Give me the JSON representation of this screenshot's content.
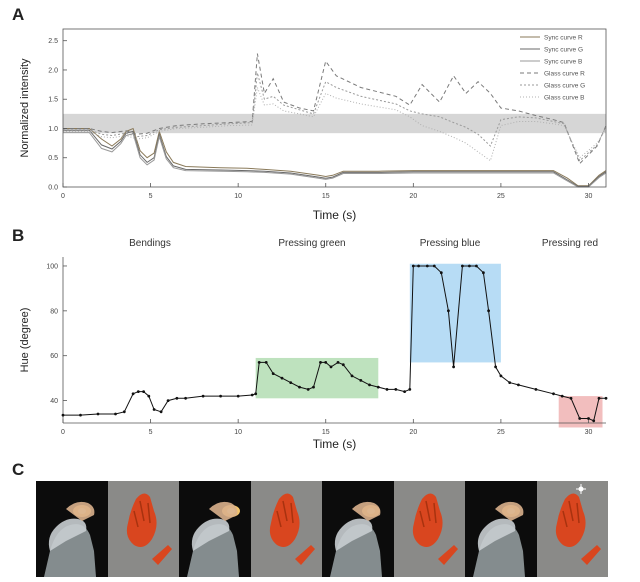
{
  "panels": {
    "a": "A",
    "b": "B",
    "c": "C"
  },
  "chart_data": [
    {
      "type": "line",
      "xlabel": "Time (s)",
      "ylabel": "Normalized intensity",
      "xlim": [
        0,
        31
      ],
      "ylim": [
        0,
        2.7
      ],
      "xticks": [
        0,
        5,
        10,
        15,
        20,
        25,
        30
      ],
      "yticks": [
        0.0,
        0.5,
        1.0,
        1.5,
        2.0,
        2.5
      ],
      "xtick_labels": [
        "0",
        "5",
        "10",
        "15",
        "20",
        "25",
        "30"
      ],
      "ytick_labels": [
        "0.0",
        "0.5",
        "1.0",
        "1.5",
        "2.0",
        "2.5"
      ],
      "shaded_band": [
        0.92,
        1.25
      ],
      "legend": [
        "Sync curve R",
        "Sync curve G",
        "Sync curve B",
        "Glass curve R",
        "Glass curve G",
        "Glass curve B"
      ],
      "legend_position": "top-right",
      "series": [
        {
          "name": "Sync curve R",
          "color": "#8a7a5a",
          "dash": "solid",
          "x": [
            0,
            1.5,
            2.2,
            2.8,
            3.3,
            3.6,
            4.0,
            4.4,
            4.8,
            5.2,
            5.5,
            5.9,
            6.3,
            7,
            9,
            10.5,
            11.5,
            13,
            14.6,
            15.0,
            15.4,
            16,
            18,
            20,
            22,
            24,
            26,
            28,
            28.8,
            29.4,
            30.0,
            30.6,
            31
          ],
          "y": [
            1.0,
            1.0,
            0.82,
            0.7,
            0.82,
            0.95,
            1.0,
            0.62,
            0.5,
            0.58,
            0.95,
            0.6,
            0.42,
            0.35,
            0.33,
            0.32,
            0.3,
            0.27,
            0.2,
            0.18,
            0.2,
            0.27,
            0.27,
            0.28,
            0.28,
            0.28,
            0.28,
            0.28,
            0.15,
            0.02,
            0.02,
            0.2,
            0.28
          ]
        },
        {
          "name": "Sync curve G",
          "color": "#6a6a6a",
          "dash": "solid",
          "x": [
            0,
            1.5,
            2.2,
            2.8,
            3.3,
            3.6,
            4.0,
            4.4,
            4.8,
            5.2,
            5.5,
            5.9,
            6.3,
            7,
            9,
            10.5,
            11.5,
            13,
            14.6,
            15.0,
            15.4,
            16,
            18,
            20,
            22,
            24,
            26,
            28,
            28.8,
            29.4,
            30.0,
            30.6,
            31
          ],
          "y": [
            0.97,
            0.97,
            0.72,
            0.65,
            0.78,
            0.92,
            0.95,
            0.55,
            0.42,
            0.5,
            0.9,
            0.52,
            0.36,
            0.3,
            0.29,
            0.28,
            0.27,
            0.24,
            0.17,
            0.15,
            0.17,
            0.25,
            0.25,
            0.26,
            0.26,
            0.26,
            0.26,
            0.26,
            0.12,
            0.01,
            0.01,
            0.18,
            0.26
          ]
        },
        {
          "name": "Sync curve B",
          "color": "#9a9a9a",
          "dash": "solid",
          "x": [
            0,
            1.5,
            2.2,
            2.8,
            3.3,
            3.6,
            4.0,
            4.4,
            4.8,
            5.2,
            5.5,
            5.9,
            6.3,
            7,
            9,
            10.5,
            11.5,
            13,
            14.6,
            15.0,
            15.4,
            16,
            18,
            20,
            22,
            24,
            26,
            28,
            28.8,
            29.4,
            30.0,
            30.6,
            31
          ],
          "y": [
            0.93,
            0.93,
            0.66,
            0.6,
            0.74,
            0.88,
            0.91,
            0.5,
            0.38,
            0.46,
            0.86,
            0.48,
            0.33,
            0.28,
            0.27,
            0.26,
            0.25,
            0.22,
            0.15,
            0.13,
            0.15,
            0.23,
            0.23,
            0.24,
            0.24,
            0.24,
            0.24,
            0.24,
            0.1,
            0.0,
            0.0,
            0.16,
            0.24
          ]
        },
        {
          "name": "Glass curve R",
          "color": "#7a7a7a",
          "dash": "4,3",
          "x": [
            0,
            1.5,
            2.2,
            2.8,
            3.6,
            4.2,
            4.8,
            5.5,
            6.5,
            8,
            9.5,
            10.8,
            11.1,
            11.5,
            12,
            12.6,
            13.5,
            14.3,
            15.0,
            15.6,
            17,
            19,
            19.8,
            20.5,
            21.5,
            22.3,
            23,
            23.7,
            24.4,
            25,
            26,
            27,
            28,
            28.6,
            29.5,
            30.5,
            31
          ],
          "y": [
            1.0,
            1.0,
            0.95,
            0.93,
            0.96,
            0.9,
            0.92,
            1.0,
            1.05,
            1.08,
            1.1,
            1.12,
            2.28,
            1.6,
            1.85,
            1.45,
            1.35,
            1.3,
            2.15,
            1.9,
            1.7,
            1.55,
            1.4,
            1.75,
            1.45,
            1.9,
            1.6,
            1.8,
            1.6,
            1.35,
            1.3,
            1.22,
            1.15,
            1.1,
            0.4,
            0.7,
            1.05
          ]
        },
        {
          "name": "Glass curve G",
          "color": "#9a9a9a",
          "dash": "2,2",
          "x": [
            0,
            1.5,
            2.2,
            2.8,
            3.6,
            4.2,
            4.8,
            5.5,
            6.5,
            8,
            9.5,
            10.8,
            11.1,
            11.5,
            12,
            12.6,
            13.5,
            14.3,
            15.0,
            15.6,
            17,
            19,
            19.8,
            20.5,
            21.5,
            22.3,
            23,
            23.7,
            24.4,
            25,
            26,
            27,
            28,
            28.6,
            29.5,
            30.5,
            31
          ],
          "y": [
            0.98,
            0.98,
            0.9,
            0.88,
            0.92,
            0.86,
            0.88,
            0.98,
            1.02,
            1.05,
            1.08,
            1.1,
            1.95,
            1.5,
            1.55,
            1.4,
            1.32,
            1.25,
            1.8,
            1.7,
            1.55,
            1.42,
            1.3,
            1.25,
            1.2,
            1.1,
            1.02,
            0.9,
            0.7,
            1.15,
            1.2,
            1.18,
            1.12,
            1.08,
            0.45,
            0.72,
            1.03
          ]
        },
        {
          "name": "Glass curve B",
          "color": "#b0b0b0",
          "dash": "1,2",
          "x": [
            0,
            1.5,
            2.2,
            2.8,
            3.6,
            4.2,
            4.8,
            5.5,
            6.5,
            8,
            9.5,
            10.8,
            11.1,
            11.5,
            12,
            12.6,
            13.5,
            14.3,
            15.0,
            15.6,
            17,
            19,
            19.8,
            20.5,
            21.5,
            22.3,
            23,
            23.7,
            24.4,
            25,
            26,
            27,
            28,
            28.6,
            29.5,
            30.5,
            31
          ],
          "y": [
            0.95,
            0.95,
            0.86,
            0.84,
            0.88,
            0.82,
            0.84,
            0.95,
            1.0,
            1.02,
            1.05,
            1.06,
            1.7,
            1.4,
            1.42,
            1.3,
            1.25,
            1.2,
            1.6,
            1.52,
            1.42,
            1.32,
            1.2,
            1.05,
            0.95,
            0.85,
            0.75,
            0.6,
            0.45,
            1.05,
            1.12,
            1.12,
            1.08,
            1.05,
            0.5,
            0.75,
            1.0
          ]
        }
      ]
    },
    {
      "type": "line",
      "xlabel": "Time (s)",
      "ylabel": "Hue (degree)",
      "xlim": [
        0,
        31
      ],
      "ylim": [
        30,
        104
      ],
      "xticks": [
        0,
        5,
        10,
        15,
        20,
        25,
        30
      ],
      "yticks": [
        40,
        60,
        80,
        100
      ],
      "xtick_labels": [
        "0",
        "5",
        "10",
        "15",
        "20",
        "25",
        "30"
      ],
      "ytick_labels": [
        "40",
        "60",
        "80",
        "100"
      ],
      "annotations": [
        "Bendings",
        "Pressing green",
        "Pressing blue",
        "Pressing red"
      ],
      "regions": [
        {
          "label": "Pressing green",
          "x": [
            11,
            18
          ],
          "y": [
            41,
            59
          ],
          "color": "#a8d8a8"
        },
        {
          "label": "Pressing blue",
          "x": [
            19.8,
            25
          ],
          "y": [
            57,
            101
          ],
          "color": "#9fd0f2"
        },
        {
          "label": "Pressing red",
          "x": [
            28.3,
            30.8
          ],
          "y": [
            28,
            42
          ],
          "color": "#eea8a8"
        }
      ],
      "series": [
        {
          "name": "",
          "color": "#111111",
          "x": [
            0,
            1,
            2,
            3,
            3.5,
            4,
            4.3,
            4.6,
            4.9,
            5.2,
            5.6,
            6,
            6.5,
            7,
            8,
            9,
            10,
            10.8,
            11.0,
            11.2,
            11.6,
            12,
            12.5,
            13,
            13.5,
            14,
            14.3,
            14.7,
            15,
            15.3,
            15.7,
            16,
            16.5,
            17,
            17.5,
            18,
            18.5,
            19,
            19.5,
            19.8,
            20.0,
            20.3,
            20.8,
            21.2,
            21.6,
            22.0,
            22.3,
            22.8,
            23.2,
            23.6,
            24.0,
            24.3,
            24.7,
            25,
            25.5,
            26,
            27,
            28,
            28.5,
            29.0,
            29.5,
            30.0,
            30.3,
            30.6,
            31
          ],
          "y": [
            33.5,
            33.5,
            34,
            34,
            35,
            43,
            44,
            44,
            42,
            36,
            35,
            40,
            41,
            41,
            42,
            42,
            42,
            42.5,
            43,
            57,
            57,
            52,
            50,
            48,
            46,
            45,
            46,
            57,
            57,
            55,
            57,
            56,
            51,
            49,
            47,
            46,
            45,
            45,
            44,
            45,
            100,
            100,
            100,
            100,
            97,
            80,
            55,
            100,
            100,
            100,
            97,
            80,
            55,
            51,
            48,
            47,
            45,
            43,
            42,
            41,
            32,
            32,
            31,
            41,
            41
          ]
        }
      ]
    }
  ],
  "photos": [
    {
      "kind": "hand-photo",
      "icon": "hand-icon"
    },
    {
      "kind": "model-render",
      "icon": "arm-model-icon"
    },
    {
      "kind": "hand-photo",
      "icon": "hand-icon"
    },
    {
      "kind": "model-render",
      "icon": "arm-model-icon"
    },
    {
      "kind": "hand-photo",
      "icon": "hand-icon"
    },
    {
      "kind": "model-render",
      "icon": "arm-model-icon"
    },
    {
      "kind": "hand-photo",
      "icon": "hand-icon"
    },
    {
      "kind": "model-render",
      "icon": "arm-model-icon"
    }
  ]
}
